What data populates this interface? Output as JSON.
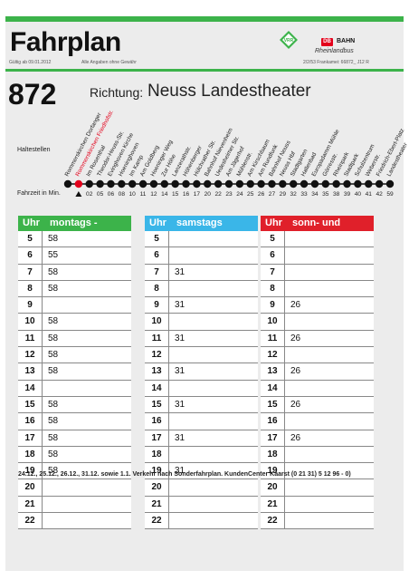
{
  "header": {
    "title": "Fahrplan",
    "valid_from": "Gültig ab 09.01.2012",
    "disclaimer": "Alle Angaben ohne Gewähr",
    "ref": "2/2/53 Frankamei: 66872_ J12 R",
    "vrr_label": "VRR",
    "db_label": "DB",
    "db_name": "BAHN",
    "db_sub": "Rheinlandbus"
  },
  "route": {
    "line": "872",
    "direction_label": "Richtung:",
    "destination": "Neuss Landestheater",
    "stops_label": "Haltestellen",
    "times_label": "Fahrzeit in Min.",
    "stops": [
      {
        "name": "Rommerskirchen Dorfanger",
        "time": ""
      },
      {
        "name": "Rommerskirchen Friedhofstr.",
        "time": "",
        "current": true
      },
      {
        "name": "Im Rosenthal",
        "time": "02"
      },
      {
        "name": "Theodor-Heuss-Str.",
        "time": "05"
      },
      {
        "name": "Evinghoven Kirche",
        "time": "06"
      },
      {
        "name": "Hoeninghoven",
        "time": "08"
      },
      {
        "name": "Im Kamp",
        "time": "10"
      },
      {
        "name": "Am Goldberg",
        "time": "11"
      },
      {
        "name": "Hoeninger Weg",
        "time": "12"
      },
      {
        "name": "Zur Höhe",
        "time": "14"
      },
      {
        "name": "Lanzerathstr.",
        "time": "15"
      },
      {
        "name": "Höhenberger",
        "time": "16"
      },
      {
        "name": "Hülchrather Str.",
        "time": "17"
      },
      {
        "name": "Bahnhof Nievenheim",
        "time": "20"
      },
      {
        "name": "Uedesheimer Str.",
        "time": "22"
      },
      {
        "name": "Am Jägerhof",
        "time": "23"
      },
      {
        "name": "Mühlenstr.",
        "time": "24"
      },
      {
        "name": "Am Kirschbaum",
        "time": "25"
      },
      {
        "name": "Am Rundfunk",
        "time": "26"
      },
      {
        "name": "Bahnhof Neuss",
        "time": "27"
      },
      {
        "name": "Neuss Hbf",
        "time": "29"
      },
      {
        "name": "Stadtgarten",
        "time": "32"
      },
      {
        "name": "Hallenbad",
        "time": "33"
      },
      {
        "name": "Europadamm Mühle",
        "time": "34"
      },
      {
        "name": "Görresstr.",
        "time": "35"
      },
      {
        "name": "Rheinpark",
        "time": "38"
      },
      {
        "name": "Stadtpark",
        "time": "39"
      },
      {
        "name": "Schulzentrum",
        "time": "40"
      },
      {
        "name": "Weberstr.",
        "time": "41"
      },
      {
        "name": "Friedrich-Ebert-Platz",
        "time": "42"
      },
      {
        "name": "Landestheater",
        "time": "59"
      }
    ]
  },
  "colors": {
    "green": "#3cb34a",
    "red": "#e3001b",
    "weekday": "#3cb34a",
    "saturday": "#3ab6e8",
    "sunday": "#e0202a"
  },
  "tables": [
    {
      "uhr": "Uhr",
      "days": "montags - freitags",
      "color": "#3cb34a",
      "rows": [
        {
          "hour": "5",
          "minutes": "58"
        },
        {
          "hour": "6",
          "minutes": "55"
        },
        {
          "hour": "7",
          "minutes": "58"
        },
        {
          "hour": "8",
          "minutes": "58"
        },
        {
          "hour": "9",
          "minutes": ""
        },
        {
          "hour": "10",
          "minutes": "58"
        },
        {
          "hour": "11",
          "minutes": "58"
        },
        {
          "hour": "12",
          "minutes": "58"
        },
        {
          "hour": "13",
          "minutes": "58"
        },
        {
          "hour": "14",
          "minutes": ""
        },
        {
          "hour": "15",
          "minutes": "58"
        },
        {
          "hour": "16",
          "minutes": "58"
        },
        {
          "hour": "17",
          "minutes": "58"
        },
        {
          "hour": "18",
          "minutes": "58"
        },
        {
          "hour": "19",
          "minutes": "58"
        },
        {
          "hour": "20",
          "minutes": ""
        },
        {
          "hour": "21",
          "minutes": ""
        },
        {
          "hour": "22",
          "minutes": ""
        }
      ]
    },
    {
      "uhr": "Uhr",
      "days": "samstags",
      "color": "#3ab6e8",
      "rows": [
        {
          "hour": "5",
          "minutes": ""
        },
        {
          "hour": "6",
          "minutes": ""
        },
        {
          "hour": "7",
          "minutes": "31"
        },
        {
          "hour": "8",
          "minutes": ""
        },
        {
          "hour": "9",
          "minutes": "31"
        },
        {
          "hour": "10",
          "minutes": ""
        },
        {
          "hour": "11",
          "minutes": "31"
        },
        {
          "hour": "12",
          "minutes": ""
        },
        {
          "hour": "13",
          "minutes": "31"
        },
        {
          "hour": "14",
          "minutes": ""
        },
        {
          "hour": "15",
          "minutes": "31"
        },
        {
          "hour": "16",
          "minutes": ""
        },
        {
          "hour": "17",
          "minutes": "31"
        },
        {
          "hour": "18",
          "minutes": ""
        },
        {
          "hour": "19",
          "minutes": "31"
        },
        {
          "hour": "20",
          "minutes": ""
        },
        {
          "hour": "21",
          "minutes": ""
        },
        {
          "hour": "22",
          "minutes": ""
        }
      ]
    },
    {
      "uhr": "Uhr",
      "days": "sonn- und feiertags",
      "color": "#e0202a",
      "rows": [
        {
          "hour": "5",
          "minutes": ""
        },
        {
          "hour": "6",
          "minutes": ""
        },
        {
          "hour": "7",
          "minutes": ""
        },
        {
          "hour": "8",
          "minutes": ""
        },
        {
          "hour": "9",
          "minutes": "26"
        },
        {
          "hour": "10",
          "minutes": ""
        },
        {
          "hour": "11",
          "minutes": "26"
        },
        {
          "hour": "12",
          "minutes": ""
        },
        {
          "hour": "13",
          "minutes": "26"
        },
        {
          "hour": "14",
          "minutes": ""
        },
        {
          "hour": "15",
          "minutes": "26"
        },
        {
          "hour": "16",
          "minutes": ""
        },
        {
          "hour": "17",
          "minutes": "26"
        },
        {
          "hour": "18",
          "minutes": ""
        },
        {
          "hour": "19",
          "minutes": ""
        },
        {
          "hour": "20",
          "minutes": ""
        },
        {
          "hour": "21",
          "minutes": ""
        },
        {
          "hour": "22",
          "minutes": ""
        }
      ]
    }
  ],
  "footnote": "24.12., 25.12., 26.12., 31.12. sowie 1.1. Verkehr nach Sonderfahrplan. KundenCenter Kaarst (0 21 31) 5 12 96 - 0)"
}
